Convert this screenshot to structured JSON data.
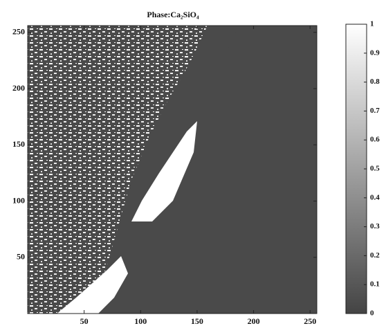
{
  "chart_data": {
    "type": "heatmap",
    "title": "Phase:Ca₂SiO₄",
    "xlim": [
      0,
      256
    ],
    "xticks": [
      50,
      100,
      150,
      200,
      250
    ],
    "ylim": [
      0,
      256
    ],
    "yticks": [
      50,
      100,
      150,
      200,
      250
    ],
    "colorbar": {
      "lim": [
        0,
        1
      ],
      "ticks": [
        0,
        0.1,
        0.2,
        0.3,
        0.4,
        0.5,
        0.6,
        0.7,
        0.8,
        0.9,
        1
      ],
      "colors": [
        "#444444",
        "#ffffff"
      ]
    }
  }
}
